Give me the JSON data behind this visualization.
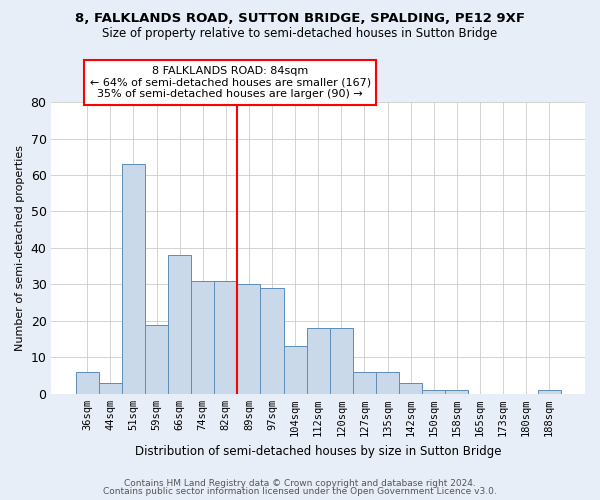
{
  "title1": "8, FALKLANDS ROAD, SUTTON BRIDGE, SPALDING, PE12 9XF",
  "title2": "Size of property relative to semi-detached houses in Sutton Bridge",
  "xlabel": "Distribution of semi-detached houses by size in Sutton Bridge",
  "ylabel": "Number of semi-detached properties",
  "footer1": "Contains HM Land Registry data © Crown copyright and database right 2024.",
  "footer2": "Contains public sector information licensed under the Open Government Licence v3.0.",
  "categories": [
    "36sqm",
    "44sqm",
    "51sqm",
    "59sqm",
    "66sqm",
    "74sqm",
    "82sqm",
    "89sqm",
    "97sqm",
    "104sqm",
    "112sqm",
    "120sqm",
    "127sqm",
    "135sqm",
    "142sqm",
    "150sqm",
    "158sqm",
    "165sqm",
    "173sqm",
    "180sqm",
    "188sqm"
  ],
  "values": [
    6,
    3,
    63,
    19,
    38,
    31,
    31,
    30,
    29,
    13,
    18,
    18,
    6,
    6,
    3,
    1,
    1,
    0,
    0,
    0,
    1
  ],
  "bar_color": "#c9d9ea",
  "bar_edge_color": "#5b8db8",
  "vline_color": "red",
  "annotation_line1": "8 FALKLANDS ROAD: 84sqm",
  "annotation_line2": "← 64% of semi-detached houses are smaller (167)",
  "annotation_line3": "35% of semi-detached houses are larger (90) →",
  "annotation_box_color": "white",
  "annotation_box_edge": "red",
  "ylim": [
    0,
    80
  ],
  "yticks": [
    0,
    10,
    20,
    30,
    40,
    50,
    60,
    70,
    80
  ],
  "background_color": "#e8eef8",
  "plot_bg_color": "white",
  "grid_color": "#cccccc"
}
